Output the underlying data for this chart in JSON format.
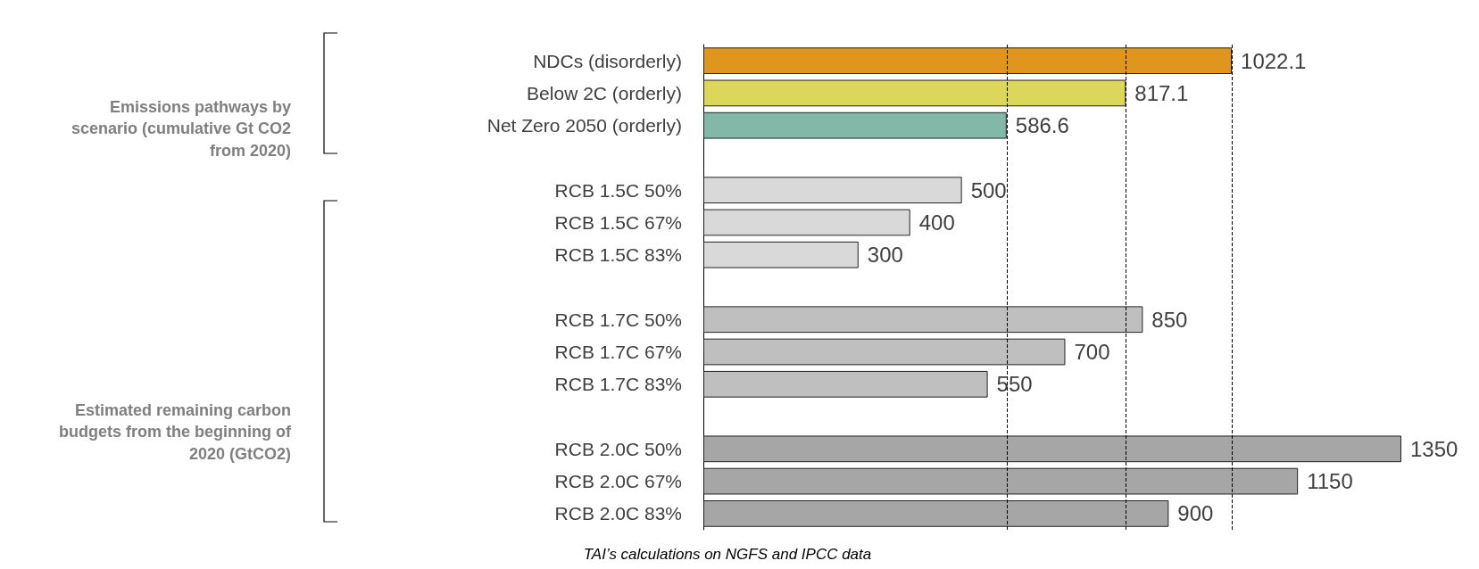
{
  "chart_data": {
    "type": "bar",
    "orientation": "horizontal",
    "data_labels": true,
    "categories": [
      "NDCs (disorderly)",
      "Below 2C (orderly)",
      "Net Zero 2050 (orderly)",
      null,
      "RCB 1.5C 50%",
      "RCB 1.5C 67%",
      "RCB 1.5C 83%",
      null,
      "RCB 1.7C 50%",
      "RCB 1.7C 67%",
      "RCB 1.7C 83%",
      null,
      "RCB 2.0C 50%",
      "RCB 2.0C 67%",
      "RCB 2.0C 83%"
    ],
    "values": [
      1022.1,
      817.1,
      586.6,
      null,
      500,
      400,
      300,
      null,
      850,
      700,
      550,
      null,
      1350,
      1150,
      900
    ],
    "colors": [
      "#e0961e",
      "#dcd65a",
      "#82b8a8",
      null,
      "#d9d9d9",
      "#d9d9d9",
      "#d9d9d9",
      null,
      "#bfbfbf",
      "#bfbfbf",
      "#bfbfbf",
      null,
      "#a6a6a6",
      "#a6a6a6",
      "#a6a6a6"
    ],
    "ref_lines": [
      {
        "axis": "x",
        "value": 586.6,
        "line_style": "dashed"
      },
      {
        "axis": "x",
        "value": 817.1,
        "line_style": "dashed"
      },
      {
        "axis": "x",
        "value": 1022.1,
        "line_style": "dashed"
      }
    ],
    "annotations": [
      "Emissions pathways by scenario (cumulative Gt CO2 from 2020)",
      "Estimated remaining carbon budgets from the beginning of 2020 (GtCO2)",
      "TAI’s calculations on NGFS and IPCC data"
    ]
  }
}
